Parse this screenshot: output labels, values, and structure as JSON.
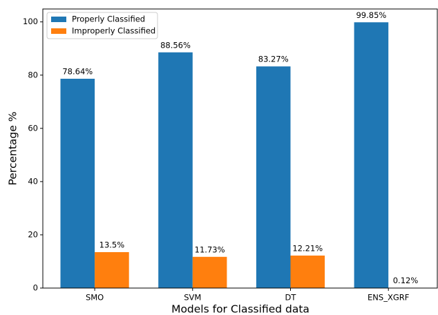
{
  "chart_data": {
    "type": "bar",
    "xlabel": "Models for Classified data",
    "ylabel": "Percentage %",
    "categories": [
      "SMO",
      "SVM",
      "DT",
      "ENS_XGRF"
    ],
    "series": [
      {
        "name": "Properly Classified",
        "color": "#1f77b4",
        "values": [
          78.64,
          88.56,
          83.27,
          99.85
        ],
        "value_labels": [
          "78.64%",
          "88.56%",
          "83.27%",
          "99.85%"
        ]
      },
      {
        "name": "Improperly Classified",
        "color": "#ff7f0e",
        "values": [
          13.5,
          11.73,
          12.21,
          0.12
        ],
        "value_labels": [
          "13.5%",
          "11.73%",
          "12.21%",
          "0.12%"
        ]
      }
    ],
    "ylim": [
      0,
      104.85
    ],
    "yticks": [
      0,
      20,
      40,
      60,
      80,
      100
    ],
    "legend": "upper left"
  }
}
